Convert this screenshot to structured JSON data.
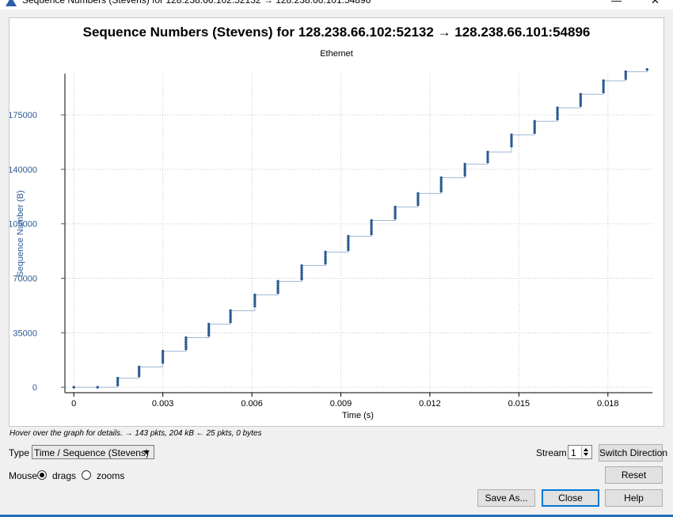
{
  "window": {
    "title": "Sequence Numbers (Stevens) for 128.238.66.102:52132 → 128.238.66.101:54896",
    "minimize_glyph": "—",
    "close_glyph": "✕"
  },
  "chart_data": {
    "type": "scatter",
    "title": "Sequence Numbers (Stevens) for 128.238.66.102:52132 → 128.238.66.101:54896",
    "subtitle": "Ethernet",
    "xlabel": "Time (s)",
    "ylabel": "Sequence Number (B)",
    "xlim": [
      -0.0003,
      0.0195
    ],
    "ylim": [
      -3500,
      201500
    ],
    "xticks": [
      0,
      0.003,
      0.006,
      0.009,
      0.012,
      0.015,
      0.018
    ],
    "xtick_labels": [
      "0",
      "0.003",
      "0.006",
      "0.009",
      "0.012",
      "0.015",
      "0.018"
    ],
    "yticks": [
      0,
      35000,
      70000,
      105000,
      140000,
      175000
    ],
    "ytick_labels": [
      "0",
      "35000",
      "70000",
      "105000",
      "140000",
      "175000"
    ],
    "grid": true,
    "point_color": "#2a5a92",
    "line_color": "#9fb7d3",
    "bursts": [
      {
        "t": 0.0,
        "y0": 0,
        "y1": 0
      },
      {
        "t": 0.0008,
        "y0": 0,
        "y1": 0
      },
      {
        "t": 0.00148,
        "y0": 1448,
        "y1": 5792
      },
      {
        "t": 0.0022,
        "y0": 7240,
        "y1": 13032
      },
      {
        "t": 0.003,
        "y0": 15928,
        "y1": 23168
      },
      {
        "t": 0.00378,
        "y0": 24616,
        "y1": 31856
      },
      {
        "t": 0.00455,
        "y0": 33304,
        "y1": 40544
      },
      {
        "t": 0.00528,
        "y0": 42000,
        "y1": 49232
      },
      {
        "t": 0.0061,
        "y0": 52128,
        "y1": 59368
      },
      {
        "t": 0.00688,
        "y0": 60816,
        "y1": 68056
      },
      {
        "t": 0.00768,
        "y0": 69504,
        "y1": 78192
      },
      {
        "t": 0.00848,
        "y0": 79640,
        "y1": 86880
      },
      {
        "t": 0.00925,
        "y0": 88328,
        "y1": 97016
      },
      {
        "t": 0.01003,
        "y0": 98464,
        "y1": 107152
      },
      {
        "t": 0.01083,
        "y0": 108600,
        "y1": 115840
      },
      {
        "t": 0.0116,
        "y0": 117288,
        "y1": 124528
      },
      {
        "t": 0.01238,
        "y0": 125976,
        "y1": 134664
      },
      {
        "t": 0.01318,
        "y0": 136112,
        "y1": 143352
      },
      {
        "t": 0.01395,
        "y0": 144800,
        "y1": 151128
      },
      {
        "t": 0.01475,
        "y0": 154936,
        "y1": 162176
      },
      {
        "t": 0.01553,
        "y0": 163624,
        "y1": 170864
      },
      {
        "t": 0.0163,
        "y0": 172312,
        "y1": 179552
      },
      {
        "t": 0.01708,
        "y0": 181000,
        "y1": 188240
      },
      {
        "t": 0.01785,
        "y0": 189688,
        "y1": 196928
      },
      {
        "t": 0.0186,
        "y0": 198376,
        "y1": 202720
      },
      {
        "t": 0.01932,
        "y0": 204168,
        "y1": 204168
      }
    ]
  },
  "status": {
    "hint": "Hover over the graph for details. → 143 pkts, 204 kB ← 25 pkts, 0 bytes"
  },
  "controls": {
    "type_label": "Type",
    "type_value": "Time / Sequence (Stevens)",
    "mouse_label": "Mouse",
    "drags_label": "drags",
    "zooms_label": "zooms",
    "mouse_mode": "drags",
    "stream_label": "Stream",
    "stream_value": "1",
    "switch_direction": "Switch Direction",
    "reset": "Reset",
    "save_as": "Save As...",
    "close": "Close",
    "help": "Help"
  }
}
